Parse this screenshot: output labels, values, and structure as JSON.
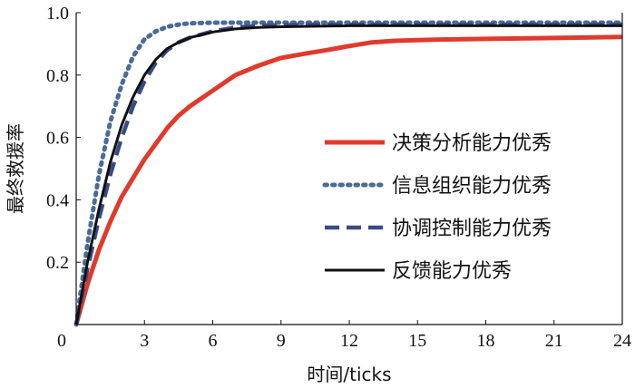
{
  "chart_data": {
    "type": "line",
    "title": "",
    "xlabel": "时间/ticks",
    "ylabel": "最终救援率",
    "xlim": [
      0,
      24
    ],
    "ylim": [
      0,
      1.0
    ],
    "xticks": [
      0,
      3,
      6,
      9,
      12,
      15,
      18,
      21,
      24
    ],
    "xtick_labels": [
      "0",
      "3",
      "6",
      "9",
      "12",
      "15",
      "18",
      "21",
      "24"
    ],
    "yticks": [
      0.2,
      0.4,
      0.6,
      0.8,
      1.0
    ],
    "ytick_labels": [
      "0.2",
      "0.4",
      "0.6",
      "0.8",
      "1.0"
    ],
    "grid": false,
    "legend_position": "center-right",
    "x": [
      0,
      0.5,
      1,
      1.5,
      2,
      2.5,
      3,
      3.5,
      4,
      4.5,
      5,
      6,
      7,
      8,
      9,
      10,
      11,
      12,
      13,
      14,
      15,
      16,
      18,
      21,
      24
    ],
    "series": [
      {
        "name": "决策分析能力优秀",
        "color": "#e03a2e",
        "style": "solid",
        "values": [
          0.0,
          0.13,
          0.24,
          0.33,
          0.41,
          0.47,
          0.53,
          0.58,
          0.63,
          0.67,
          0.7,
          0.75,
          0.8,
          0.83,
          0.855,
          0.868,
          0.88,
          0.893,
          0.905,
          0.91,
          0.912,
          0.914,
          0.916,
          0.919,
          0.922
        ]
      },
      {
        "name": "信息组织能力优秀",
        "color": "#4a6b96",
        "style": "dotted",
        "values": [
          0.0,
          0.26,
          0.48,
          0.65,
          0.77,
          0.86,
          0.915,
          0.94,
          0.955,
          0.962,
          0.966,
          0.968,
          0.968,
          0.968,
          0.968,
          0.968,
          0.968,
          0.968,
          0.968,
          0.968,
          0.968,
          0.968,
          0.968,
          0.968,
          0.968
        ]
      },
      {
        "name": "协调控制能力优秀",
        "color": "#3b4a86",
        "style": "dashed",
        "values": [
          0.0,
          0.18,
          0.34,
          0.48,
          0.6,
          0.7,
          0.78,
          0.84,
          0.88,
          0.905,
          0.92,
          0.94,
          0.953,
          0.958,
          0.96,
          0.961,
          0.962,
          0.962,
          0.962,
          0.962,
          0.962,
          0.962,
          0.962,
          0.962,
          0.962
        ]
      },
      {
        "name": "反馈能力优秀",
        "color": "#111111",
        "style": "solid",
        "values": [
          0.0,
          0.2,
          0.37,
          0.52,
          0.64,
          0.73,
          0.8,
          0.85,
          0.885,
          0.905,
          0.92,
          0.938,
          0.948,
          0.953,
          0.955,
          0.956,
          0.957,
          0.958,
          0.958,
          0.958,
          0.958,
          0.958,
          0.958,
          0.958,
          0.958
        ]
      }
    ]
  }
}
